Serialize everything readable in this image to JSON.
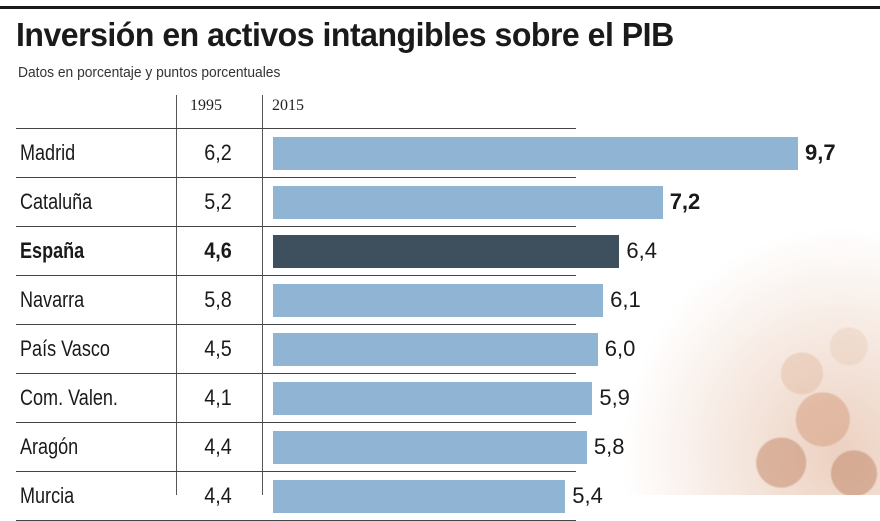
{
  "header": {
    "title": "Inversión en activos intangibles sobre el PIB",
    "subtitle": "Datos en porcentaje y puntos porcentuales"
  },
  "columns": {
    "col_1995": "1995",
    "col_2015": "2015"
  },
  "colors": {
    "bar": "#8fb4d4",
    "highlight_bar": "#3e4f5e"
  },
  "chart_data": {
    "type": "bar",
    "title": "Inversión en activos intangibles sobre el PIB",
    "subtitle": "Datos en porcentaje y puntos porcentuales",
    "orientation": "horizontal",
    "categories": [
      "Madrid",
      "Cataluña",
      "España",
      "Navarra",
      "País Vasco",
      "Com. Valen.",
      "Aragón",
      "Murcia"
    ],
    "series": [
      {
        "name": "1995",
        "values": [
          6.2,
          5.2,
          4.6,
          5.8,
          4.5,
          4.1,
          4.4,
          4.4
        ]
      },
      {
        "name": "2015",
        "values": [
          9.7,
          7.2,
          6.4,
          6.1,
          6.0,
          5.9,
          5.8,
          5.4
        ]
      }
    ],
    "value_labels_1995": [
      "6,2",
      "5,2",
      "4,6",
      "5,8",
      "4,5",
      "4,1",
      "4,4",
      "4,4"
    ],
    "value_labels_2015": [
      "9,7",
      "7,2",
      "6,4",
      "6,1",
      "6,0",
      "5,9",
      "5,8",
      "5,4"
    ],
    "highlight": "España",
    "xlim": [
      0,
      9.7
    ]
  }
}
